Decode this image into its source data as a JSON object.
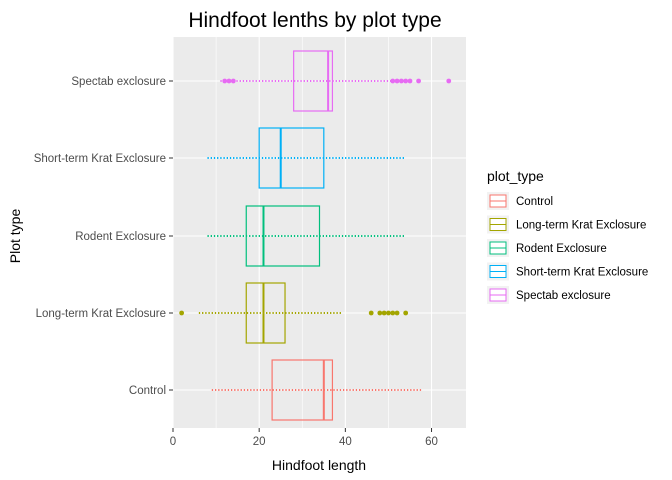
{
  "chart_data": {
    "type": "boxplot",
    "orientation": "horizontal",
    "title": "Hindfoot lenths by plot type",
    "xlabel": "Hindfoot length",
    "ylabel": "Plot type",
    "xlim": [
      0,
      68
    ],
    "xticks": [
      0,
      20,
      40,
      60
    ],
    "grid": true,
    "legend": {
      "title": "plot_type",
      "position": "right",
      "entries": [
        "Control",
        "Long-term Krat Exclosure",
        "Rodent Exclosure",
        "Short-term Krat Exclosure",
        "Spectab exclosure"
      ]
    },
    "categories": [
      "Control",
      "Long-term Krat Exclosure",
      "Rodent Exclosure",
      "Short-term Krat Exclosure",
      "Spectab exclosure"
    ],
    "series": [
      {
        "name": "Control",
        "color": "#F8766D",
        "box": {
          "q1": 23,
          "median": 35,
          "q3": 37
        },
        "jitter_range": [
          9,
          58
        ],
        "outliers": []
      },
      {
        "name": "Long-term Krat Exclosure",
        "color": "#A3A500",
        "box": {
          "q1": 17,
          "median": 21,
          "q3": 26
        },
        "jitter_range": [
          6,
          39
        ],
        "outliers": [
          2,
          46,
          48,
          49,
          50,
          51,
          52,
          54
        ]
      },
      {
        "name": "Rodent Exclosure",
        "color": "#00BF7D",
        "box": {
          "q1": 17,
          "median": 21,
          "q3": 34
        },
        "jitter_range": [
          8,
          54
        ],
        "outliers": []
      },
      {
        "name": "Short-term Krat Exclosure",
        "color": "#00B0F6",
        "box": {
          "q1": 20,
          "median": 25,
          "q3": 35
        },
        "jitter_range": [
          8,
          54
        ],
        "outliers": []
      },
      {
        "name": "Spectab exclosure",
        "color": "#E76BF3",
        "box": {
          "q1": 28,
          "median": 36,
          "q3": 37
        },
        "jitter_range": [
          11,
          51
        ],
        "outliers": [
          12,
          13,
          14,
          51,
          52,
          53,
          54,
          55,
          57,
          64
        ]
      }
    ]
  }
}
